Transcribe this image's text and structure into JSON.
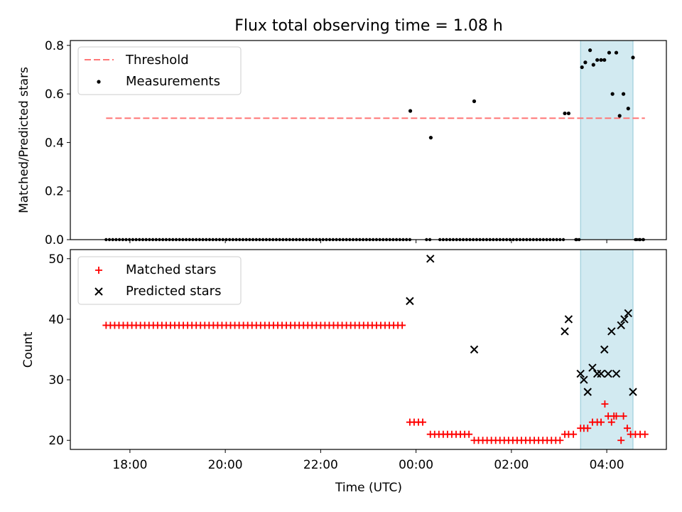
{
  "title": "Flux total observing time = 1.08 h",
  "colors": {
    "threshold": "#ff7777",
    "measurement": "#000000",
    "matched": "#ff0000",
    "predicted": "#000000",
    "span_fill": "#add8e6"
  },
  "chart_data": [
    {
      "type": "scatter",
      "name": "top",
      "ylabel": "Matched/Predicted stars",
      "xlabel": "",
      "ylim": [
        0,
        0.82
      ],
      "yticks": [
        0.0,
        0.2,
        0.4,
        0.6,
        0.8
      ],
      "yticklabels": [
        "0.0",
        "0.2",
        "0.4",
        "0.6",
        "0.8"
      ],
      "highlight_span_hours": [
        27.45,
        28.55
      ],
      "legend": {
        "position": "top-left",
        "entries": [
          "Threshold",
          "Measurements"
        ]
      },
      "threshold": {
        "label": "Threshold",
        "y": 0.5,
        "x_range_hours": [
          17.5,
          28.8
        ]
      },
      "zeros": {
        "start_hours": 17.5,
        "end_hours": 28.8,
        "step_hours": 0.07,
        "gaps_hours": [
          [
            23.9,
            24.2
          ],
          [
            24.3,
            24.45
          ],
          [
            27.1,
            27.35
          ],
          [
            27.4,
            28.6
          ]
        ]
      },
      "measurements": {
        "label": "Measurements",
        "x_hours": [
          23.88,
          24.31,
          25.22,
          27.12,
          27.2,
          27.48,
          27.55,
          27.65,
          27.72,
          27.8,
          27.88,
          27.95,
          28.05,
          28.12,
          28.2,
          28.27,
          28.35,
          28.45,
          28.55
        ],
        "y": [
          0.53,
          0.42,
          0.57,
          0.52,
          0.52,
          0.71,
          0.73,
          0.78,
          0.72,
          0.74,
          0.74,
          0.74,
          0.77,
          0.6,
          0.77,
          0.51,
          0.6,
          0.54,
          0.75
        ]
      }
    },
    {
      "type": "scatter",
      "name": "bottom",
      "ylabel": "Count",
      "xlabel": "Time (UTC)",
      "ylim": [
        18.5,
        51.5
      ],
      "yticks": [
        20,
        30,
        40,
        50
      ],
      "yticklabels": [
        "20",
        "30",
        "40",
        "50"
      ],
      "xlim_hours": [
        16.75,
        29.25
      ],
      "xticks_hours": [
        18,
        20,
        22,
        24,
        26,
        28
      ],
      "xticklabels": [
        "18:00",
        "20:00",
        "22:00",
        "00:00",
        "02:00",
        "04:00"
      ],
      "highlight_span_hours": [
        27.45,
        28.55
      ],
      "legend": {
        "position": "top-left",
        "entries": [
          "Matched stars",
          "Predicted stars"
        ]
      },
      "matched_runs": [
        {
          "start_hours": 17.5,
          "end_hours": 23.75,
          "step_hours": 0.09,
          "y": 39
        },
        {
          "start_hours": 23.87,
          "end_hours": 24.22,
          "step_hours": 0.09,
          "y": 23
        },
        {
          "start_hours": 24.3,
          "end_hours": 25.15,
          "step_hours": 0.09,
          "y": 21
        },
        {
          "start_hours": 25.22,
          "end_hours": 27.05,
          "step_hours": 0.09,
          "y": 20
        }
      ],
      "matched_points": {
        "label": "Matched stars",
        "x_hours": [
          27.12,
          27.2,
          27.3,
          27.45,
          27.52,
          27.6,
          27.7,
          27.8,
          27.88,
          27.96,
          28.03,
          28.1,
          28.15,
          28.2,
          28.3,
          28.35,
          28.43,
          28.5,
          28.6,
          28.7,
          28.8
        ],
        "y": [
          21,
          21,
          21,
          22,
          22,
          22,
          23,
          23,
          23,
          26,
          24,
          23,
          24,
          24,
          20,
          24,
          22,
          21,
          21,
          21,
          21
        ]
      },
      "predicted_points": {
        "label": "Predicted stars",
        "x_hours": [
          23.87,
          24.3,
          25.22,
          27.12,
          27.2,
          27.45,
          27.52,
          27.6,
          27.7,
          27.8,
          27.88,
          27.95,
          28.03,
          28.1,
          28.2,
          28.3,
          28.37,
          28.45,
          28.55
        ],
        "y": [
          43,
          50,
          35,
          38,
          40,
          31,
          30,
          28,
          32,
          31,
          31,
          35,
          31,
          38,
          31,
          39,
          40,
          41,
          28
        ]
      }
    }
  ]
}
